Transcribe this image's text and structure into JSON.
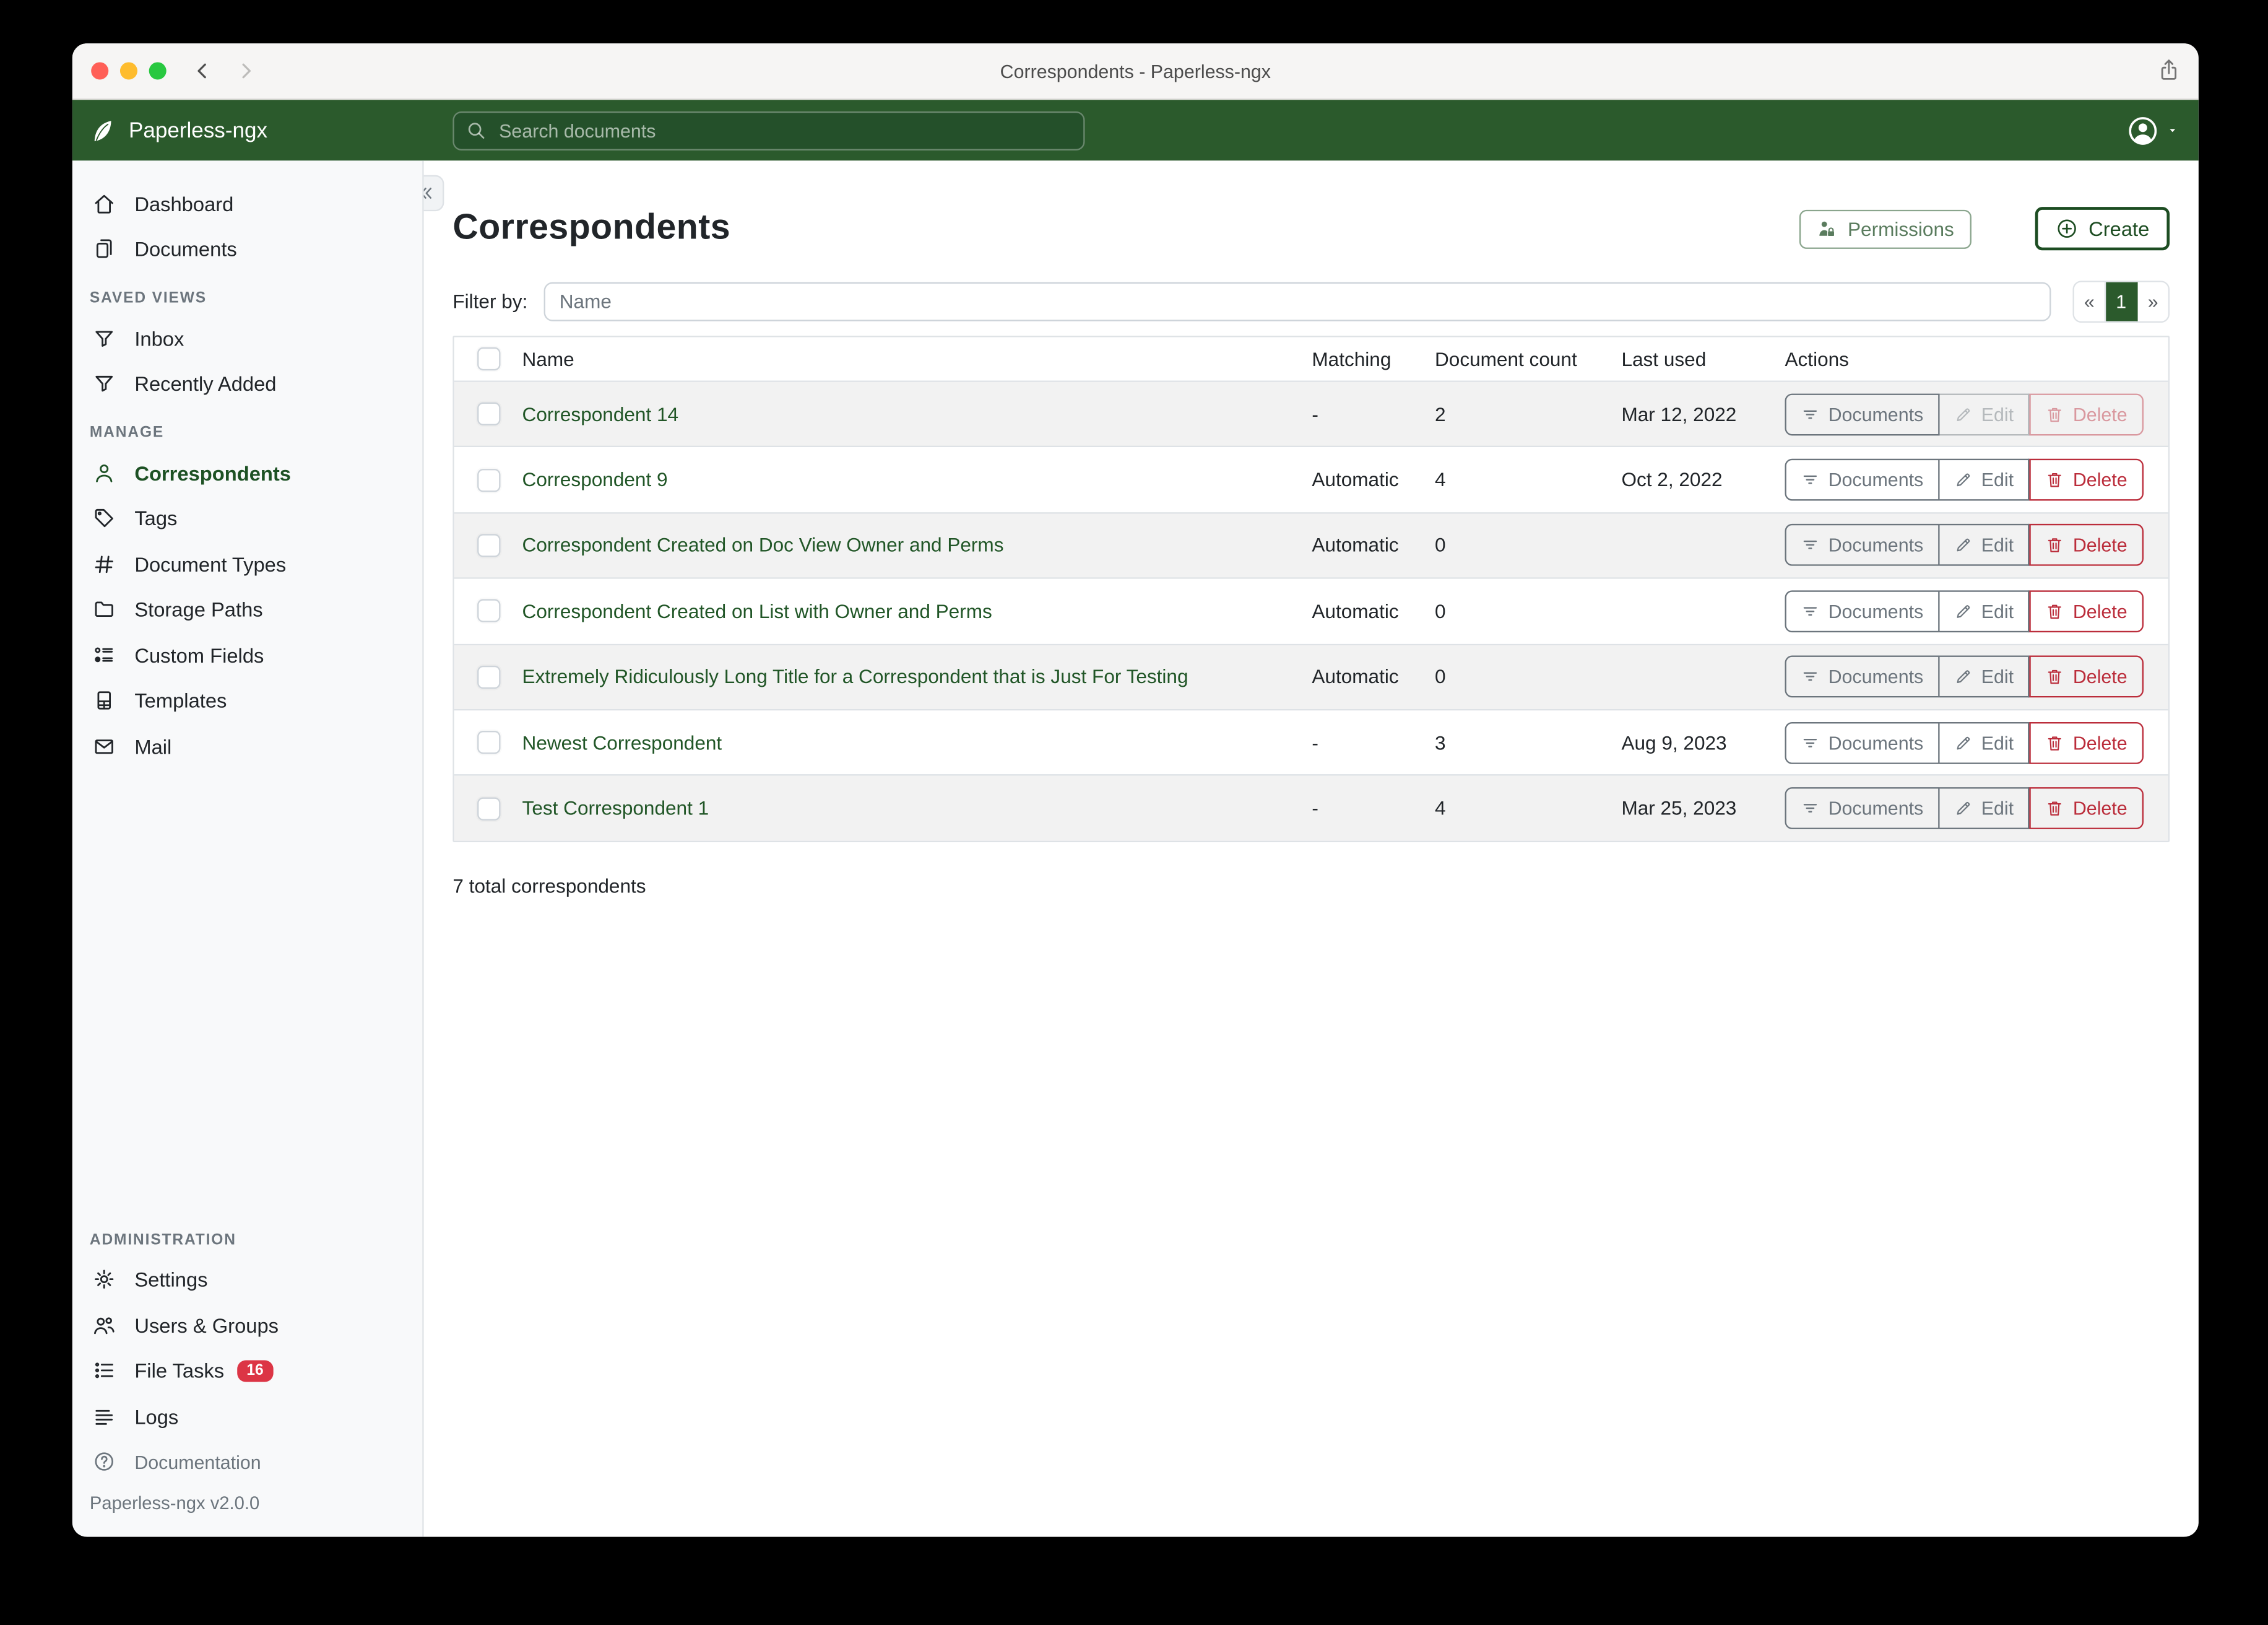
{
  "window": {
    "title": "Correspondents - Paperless-ngx",
    "traffic_lights": {
      "close": "#ff5f57",
      "minimize": "#febc2e",
      "zoom": "#28c840"
    }
  },
  "navbar": {
    "brand": "Paperless-ngx",
    "search_placeholder": "Search documents",
    "background": "#2b5a2c"
  },
  "sidebar": {
    "groups": [
      {
        "heading": "",
        "items": [
          {
            "label": "Dashboard",
            "icon": "home-icon"
          },
          {
            "label": "Documents",
            "icon": "documents-icon"
          }
        ]
      },
      {
        "heading": "SAVED VIEWS",
        "items": [
          {
            "label": "Inbox",
            "icon": "filter-icon"
          },
          {
            "label": "Recently Added",
            "icon": "filter-icon"
          }
        ]
      },
      {
        "heading": "MANAGE",
        "items": [
          {
            "label": "Correspondents",
            "icon": "person-icon",
            "active": true
          },
          {
            "label": "Tags",
            "icon": "tag-icon"
          },
          {
            "label": "Document Types",
            "icon": "hash-icon"
          },
          {
            "label": "Storage Paths",
            "icon": "folder-icon"
          },
          {
            "label": "Custom Fields",
            "icon": "custom-fields-icon"
          },
          {
            "label": "Templates",
            "icon": "template-icon"
          },
          {
            "label": "Mail",
            "icon": "mail-icon"
          }
        ]
      },
      {
        "heading": "ADMINISTRATION",
        "push_bottom": true,
        "items": [
          {
            "label": "Settings",
            "icon": "gear-icon"
          },
          {
            "label": "Users & Groups",
            "icon": "users-icon"
          },
          {
            "label": "File Tasks",
            "icon": "tasks-icon",
            "badge": "16"
          },
          {
            "label": "Logs",
            "icon": "logs-icon"
          }
        ]
      }
    ],
    "footer": {
      "documentation": "Documentation",
      "version": "Paperless-ngx v2.0.0"
    }
  },
  "page": {
    "title": "Correspondents",
    "permissions_button": "Permissions",
    "create_button": "Create",
    "filter_label": "Filter by:",
    "filter_placeholder": "Name",
    "pagination": {
      "prev": "«",
      "current": "1",
      "next": "»"
    },
    "table": {
      "headers": [
        "Name",
        "Matching",
        "Document count",
        "Last used",
        "Actions"
      ],
      "action_labels": {
        "documents": "Documents",
        "edit": "Edit",
        "delete": "Delete"
      },
      "rows": [
        {
          "name": "Correspondent 14",
          "matching": "-",
          "count": "2",
          "last_used": "Mar 12, 2022",
          "edit_disabled": true,
          "delete_disabled": true
        },
        {
          "name": "Correspondent 9",
          "matching": "Automatic",
          "count": "4",
          "last_used": "Oct 2, 2022"
        },
        {
          "name": "Correspondent Created on Doc View Owner and Perms",
          "matching": "Automatic",
          "count": "0",
          "last_used": ""
        },
        {
          "name": "Correspondent Created on List with Owner and Perms",
          "matching": "Automatic",
          "count": "0",
          "last_used": ""
        },
        {
          "name": "Extremely Ridiculously Long Title for a Correspondent that is Just For Testing",
          "matching": "Automatic",
          "count": "0",
          "last_used": ""
        },
        {
          "name": "Newest Correspondent",
          "matching": "-",
          "count": "3",
          "last_used": "Aug 9, 2023"
        },
        {
          "name": "Test Correspondent 1",
          "matching": "-",
          "count": "4",
          "last_used": "Mar 25, 2023"
        }
      ]
    },
    "summary": "7 total correspondents",
    "colors": {
      "accent_green": "#1d5124",
      "link_green": "#215627",
      "danger_red": "#bb2d3b",
      "secondary_gray": "#6c757d"
    }
  }
}
